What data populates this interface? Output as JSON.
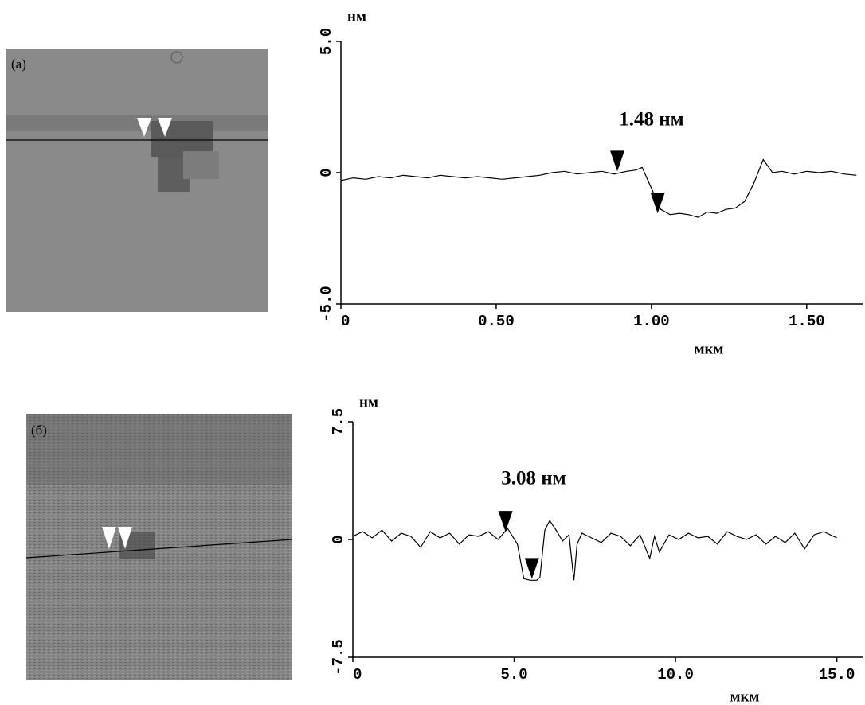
{
  "chart_data": [
    {
      "type": "line",
      "panel_label": "(a)",
      "annotation": "1.48 нм",
      "x_label": "мкм",
      "y_label": "нм",
      "xlim": [
        0,
        1.68
      ],
      "ylim": [
        -5,
        5
      ],
      "xticks": [
        0,
        {
          "value": 0.5,
          "label": "0.50"
        },
        {
          "value": 1.0,
          "label": "1.00"
        },
        {
          "value": 1.5,
          "label": "1.50"
        }
      ],
      "yticks": [
        {
          "value": -5,
          "label": "-5.0"
        },
        0,
        {
          "value": 5,
          "label": "5.0"
        }
      ],
      "color": "#000000",
      "x": [
        0,
        0.04,
        0.08,
        0.12,
        0.16,
        0.2,
        0.24,
        0.28,
        0.32,
        0.36,
        0.4,
        0.44,
        0.48,
        0.52,
        0.56,
        0.6,
        0.64,
        0.68,
        0.72,
        0.76,
        0.8,
        0.84,
        0.88,
        0.92,
        0.95,
        0.97,
        1.0,
        1.03,
        1.06,
        1.09,
        1.12,
        1.15,
        1.18,
        1.21,
        1.24,
        1.27,
        1.3,
        1.33,
        1.36,
        1.39,
        1.42,
        1.46,
        1.5,
        1.54,
        1.58,
        1.62,
        1.66
      ],
      "values": [
        -0.3,
        -0.2,
        -0.25,
        -0.15,
        -0.2,
        -0.1,
        -0.15,
        -0.2,
        -0.1,
        -0.15,
        -0.2,
        -0.15,
        -0.2,
        -0.25,
        -0.2,
        -0.15,
        -0.1,
        0.0,
        0.05,
        -0.05,
        0.0,
        0.05,
        -0.05,
        0.05,
        0.1,
        0.2,
        -0.6,
        -1.4,
        -1.6,
        -1.55,
        -1.6,
        -1.7,
        -1.5,
        -1.55,
        -1.4,
        -1.35,
        -1.1,
        -0.4,
        0.5,
        0.0,
        0.05,
        -0.05,
        0.05,
        0.0,
        0.05,
        -0.05,
        -0.1
      ],
      "cursors": [
        {
          "x": 0.89,
          "y": 0.05
        },
        {
          "x": 1.02,
          "y": -1.55
        }
      ]
    },
    {
      "type": "line",
      "panel_label": "(б)",
      "annotation": "3.08 нм",
      "x_label": "мкм",
      "y_label": "нм",
      "xlim": [
        0,
        15.8
      ],
      "ylim": [
        -7.5,
        7.5
      ],
      "xticks": [
        0,
        {
          "value": 5,
          "label": "5.0"
        },
        {
          "value": 10,
          "label": "10.0"
        },
        {
          "value": 15,
          "label": "15.0"
        }
      ],
      "yticks": [
        -7.5,
        0,
        7.5
      ],
      "color": "#000000",
      "x": [
        0,
        0.3,
        0.6,
        0.9,
        1.2,
        1.5,
        1.8,
        2.1,
        2.4,
        2.7,
        3.0,
        3.3,
        3.6,
        3.9,
        4.2,
        4.5,
        4.8,
        5.1,
        5.3,
        5.5,
        5.7,
        5.8,
        5.95,
        6.1,
        6.3,
        6.5,
        6.7,
        6.85,
        6.95,
        7.1,
        7.4,
        7.7,
        8.0,
        8.3,
        8.6,
        8.9,
        9.2,
        9.35,
        9.5,
        9.8,
        10.1,
        10.4,
        10.7,
        11.0,
        11.3,
        11.6,
        11.9,
        12.2,
        12.5,
        12.8,
        13.1,
        13.4,
        13.7,
        14.0,
        14.3,
        14.6,
        15.0
      ],
      "values": [
        0.2,
        0.5,
        0.1,
        0.6,
        -0.1,
        0.4,
        0.2,
        -0.5,
        0.5,
        0.1,
        0.4,
        -0.3,
        0.3,
        0.2,
        0.5,
        0.0,
        0.7,
        -0.3,
        -2.5,
        -2.6,
        -2.6,
        -2.4,
        0.6,
        1.2,
        0.6,
        -0.1,
        0.3,
        -2.6,
        -0.3,
        0.4,
        0.1,
        -0.2,
        0.4,
        0.2,
        -0.4,
        0.3,
        -1.2,
        0.2,
        -0.8,
        0.3,
        0.0,
        0.4,
        0.1,
        0.2,
        -0.3,
        0.5,
        0.2,
        0.0,
        0.3,
        -0.3,
        0.2,
        -0.2,
        0.4,
        -0.6,
        0.3,
        0.5,
        0.1
      ],
      "cursors": [
        {
          "x": 4.73,
          "y": 0.5
        },
        {
          "x": 5.55,
          "y": -2.5
        }
      ]
    }
  ]
}
